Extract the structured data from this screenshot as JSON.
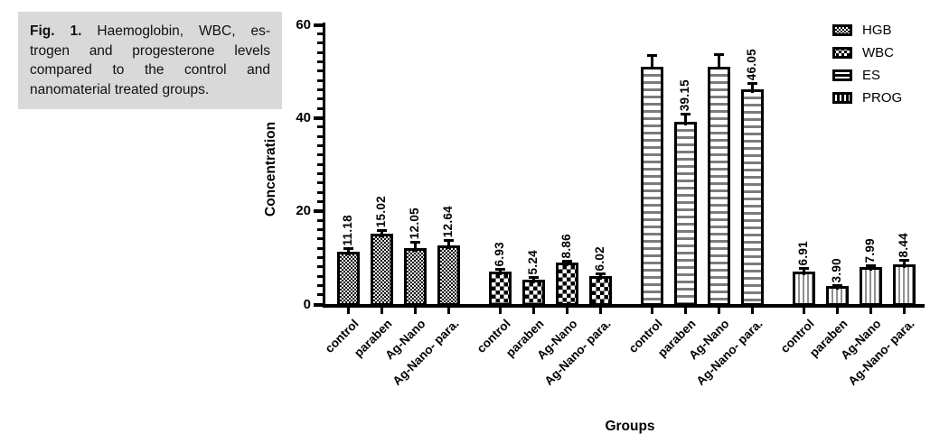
{
  "caption": {
    "prefix": "Fig. 1.",
    "line1": " Haemoglobin, WBC, es-",
    "line2": "trogen and progesterone levels",
    "line3": "compared to the control and",
    "line4": "nanomaterial treated groups."
  },
  "chart_data": {
    "type": "bar",
    "title": "",
    "xlabel": "Groups",
    "ylabel": "Concentration",
    "ylim": [
      0,
      60
    ],
    "yticks": [
      0,
      20,
      40,
      60
    ],
    "minor_tick_step": 2,
    "grid": false,
    "legend_position": "top-right",
    "categories": [
      "control",
      "paraben",
      "Ag-Nano",
      "Ag-Nano- para."
    ],
    "series": [
      {
        "name": "HGB",
        "pattern": "fine-checkerboard",
        "values": [
          11.18,
          15.02,
          12.05,
          12.64
        ],
        "errors": [
          0.7,
          0.8,
          1.2,
          1.1
        ],
        "value_labels": [
          "11.18",
          "15.02",
          "12.05",
          "12.64"
        ]
      },
      {
        "name": "WBC",
        "pattern": "checkerboard",
        "values": [
          6.93,
          5.24,
          8.86,
          6.02
        ],
        "errors": [
          0.6,
          0.5,
          0.4,
          0.4
        ],
        "value_labels": [
          "6.93",
          "5.24",
          "8.86",
          "6.02"
        ]
      },
      {
        "name": "ES",
        "pattern": "horizontal-lines",
        "values": [
          51.0,
          39.15,
          51.0,
          46.05
        ],
        "errors": [
          2.3,
          1.6,
          2.6,
          1.3
        ],
        "value_labels": [
          "",
          "39.15",
          "",
          "46.05"
        ]
      },
      {
        "name": "PROG",
        "pattern": "vertical-lines",
        "values": [
          6.91,
          3.9,
          7.99,
          8.44
        ],
        "errors": [
          0.7,
          0.15,
          0.3,
          0.9
        ],
        "value_labels": [
          "6.91",
          "3.90",
          "7.99",
          "8.44"
        ]
      }
    ]
  }
}
